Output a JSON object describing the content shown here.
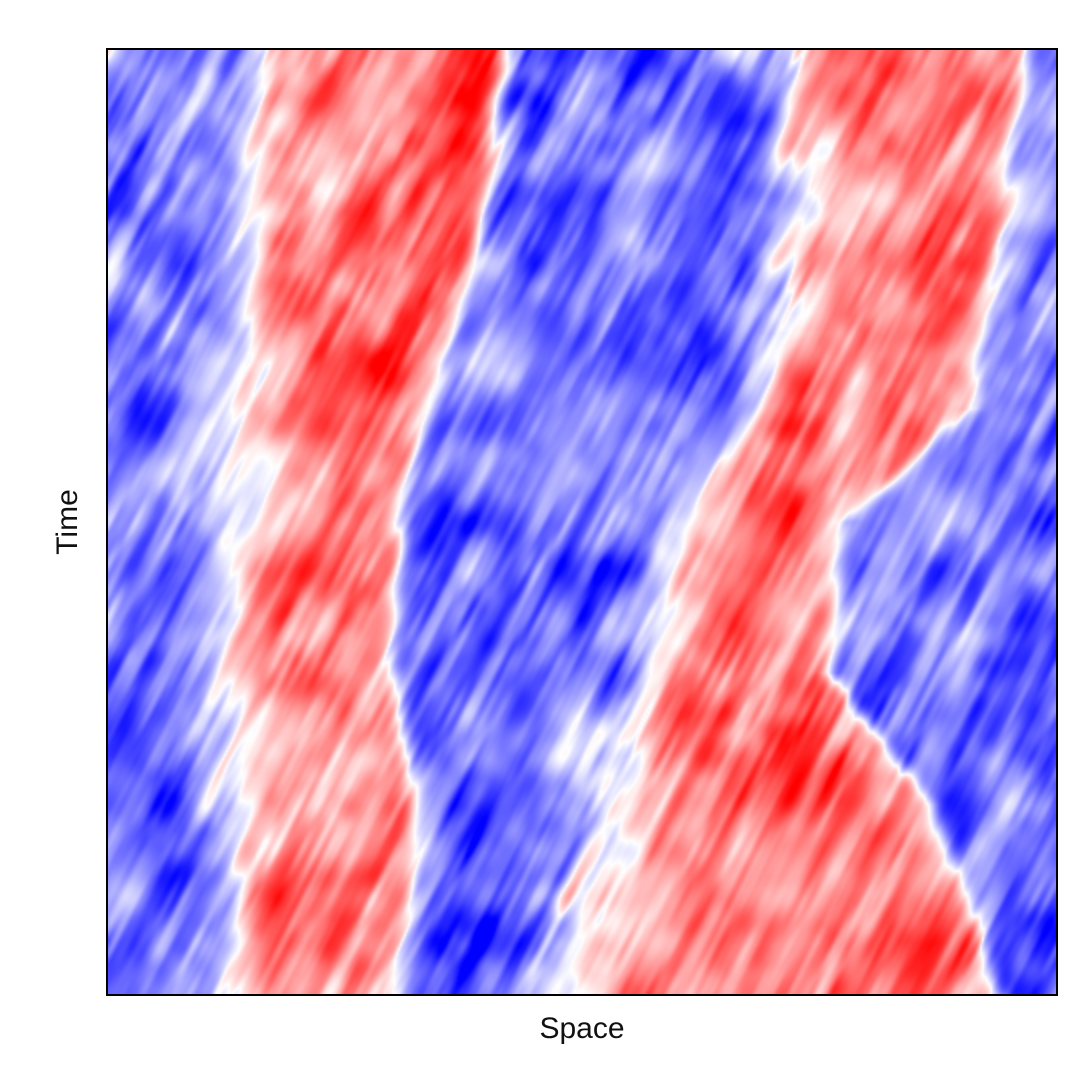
{
  "chart_data": {
    "type": "heatmap",
    "title": "",
    "xlabel": "Space",
    "ylabel": "Time",
    "x_ticks": [],
    "y_ticks": [],
    "grid": false,
    "legend": "none",
    "colormap": {
      "name": "bwr",
      "low": "#0000ff",
      "mid": "#ffffff",
      "high": "#ff0000",
      "range": [
        -1,
        1
      ]
    },
    "x_range": [
      0,
      1
    ],
    "t_range": [
      0,
      1
    ],
    "domains": [
      {
        "sign": "positive",
        "color": "red",
        "front_left": [
          [
            0.0,
            0.17
          ],
          [
            0.5,
            0.13
          ],
          [
            1.0,
            0.14
          ]
        ],
        "front_right": [
          [
            0.0,
            0.42
          ],
          [
            0.25,
            0.38
          ],
          [
            0.4,
            0.33
          ],
          [
            0.5,
            0.31
          ],
          [
            0.65,
            0.3
          ],
          [
            0.78,
            0.32
          ],
          [
            0.9,
            0.32
          ],
          [
            1.0,
            0.3
          ]
        ]
      },
      {
        "sign": "positive",
        "color": "red",
        "front_left": [
          [
            0.0,
            0.72
          ],
          [
            0.3,
            0.74
          ],
          [
            0.5,
            0.61
          ],
          [
            0.7,
            0.55
          ],
          [
            1.0,
            0.48
          ]
        ],
        "front_right": [
          [
            0.0,
            0.97
          ],
          [
            0.2,
            0.94
          ],
          [
            0.38,
            0.91
          ],
          [
            0.5,
            0.78
          ],
          [
            0.66,
            0.76
          ],
          [
            0.8,
            0.87
          ],
          [
            0.88,
            0.9
          ],
          [
            1.0,
            0.94
          ]
        ]
      }
    ]
  }
}
